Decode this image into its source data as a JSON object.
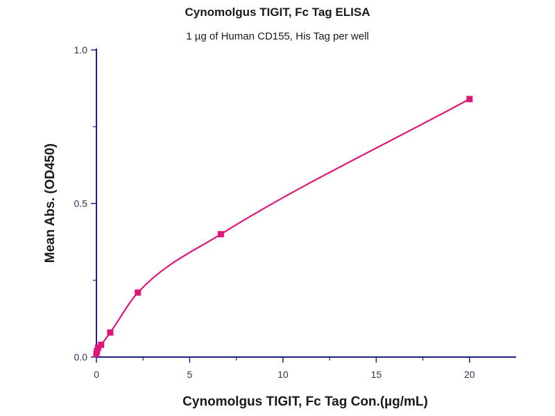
{
  "chart_data": {
    "type": "scatter",
    "title": "Cynomolgus TIGIT, Fc Tag ELISA",
    "subtitle": "1 µg of Human CD155, His Tag per well",
    "xlabel": "Cynomolgus TIGIT, Fc Tag Con.(µg/mL)",
    "ylabel": "Mean Abs. (OD450)",
    "xlim": [
      0,
      22.5
    ],
    "ylim": [
      0,
      1.0
    ],
    "x_ticks": [
      0,
      5,
      10,
      15,
      20
    ],
    "x_tick_labels": [
      "0",
      "5",
      "10",
      "15",
      "20"
    ],
    "y_ticks": [
      0.0,
      0.5,
      1.0
    ],
    "y_tick_labels": [
      "0.0",
      "0.5",
      "1.0"
    ],
    "grid": false,
    "series": [
      {
        "x": [
          0.0,
          0.03,
          0.09,
          0.25,
          0.74,
          2.22,
          6.67,
          20.0
        ],
        "y": [
          0.01,
          0.02,
          0.03,
          0.04,
          0.08,
          0.21,
          0.4,
          0.84
        ],
        "color": "#e0157a",
        "fit": "curve"
      }
    ],
    "axis_color": "#1f1f8a"
  }
}
